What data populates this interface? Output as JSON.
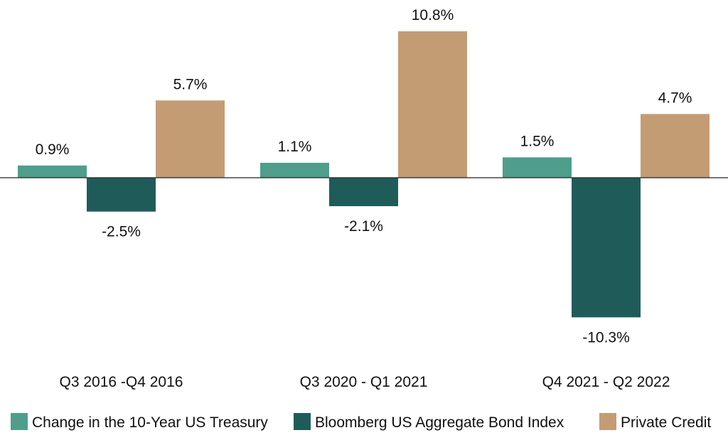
{
  "chart_data": {
    "type": "bar",
    "categories": [
      "Q3 2016 -Q4 2016",
      "Q3 2020 - Q1 2021",
      "Q4 2021 - Q2 2022"
    ],
    "series": [
      {
        "name": "Change in the 10-Year US Treasury",
        "color": "#4e9e8b",
        "values": [
          0.9,
          1.1,
          1.5
        ],
        "labels": [
          "0.9%",
          "1.1%",
          "1.5%"
        ]
      },
      {
        "name": "Bloomberg US Aggregate Bond Index",
        "color": "#1f5c59",
        "values": [
          -2.5,
          -2.1,
          -10.3
        ],
        "labels": [
          "-2.5%",
          "-2.1%",
          "-10.3%"
        ]
      },
      {
        "name": "Private Credit",
        "color": "#c49c74",
        "values": [
          5.7,
          10.8,
          4.7
        ],
        "labels": [
          "5.7%",
          "10.8%",
          "4.7%"
        ]
      }
    ],
    "xlabel": "",
    "ylabel": "",
    "ylim": [
      -10.3,
      10.8
    ],
    "grid": false,
    "legend": "bottom"
  }
}
